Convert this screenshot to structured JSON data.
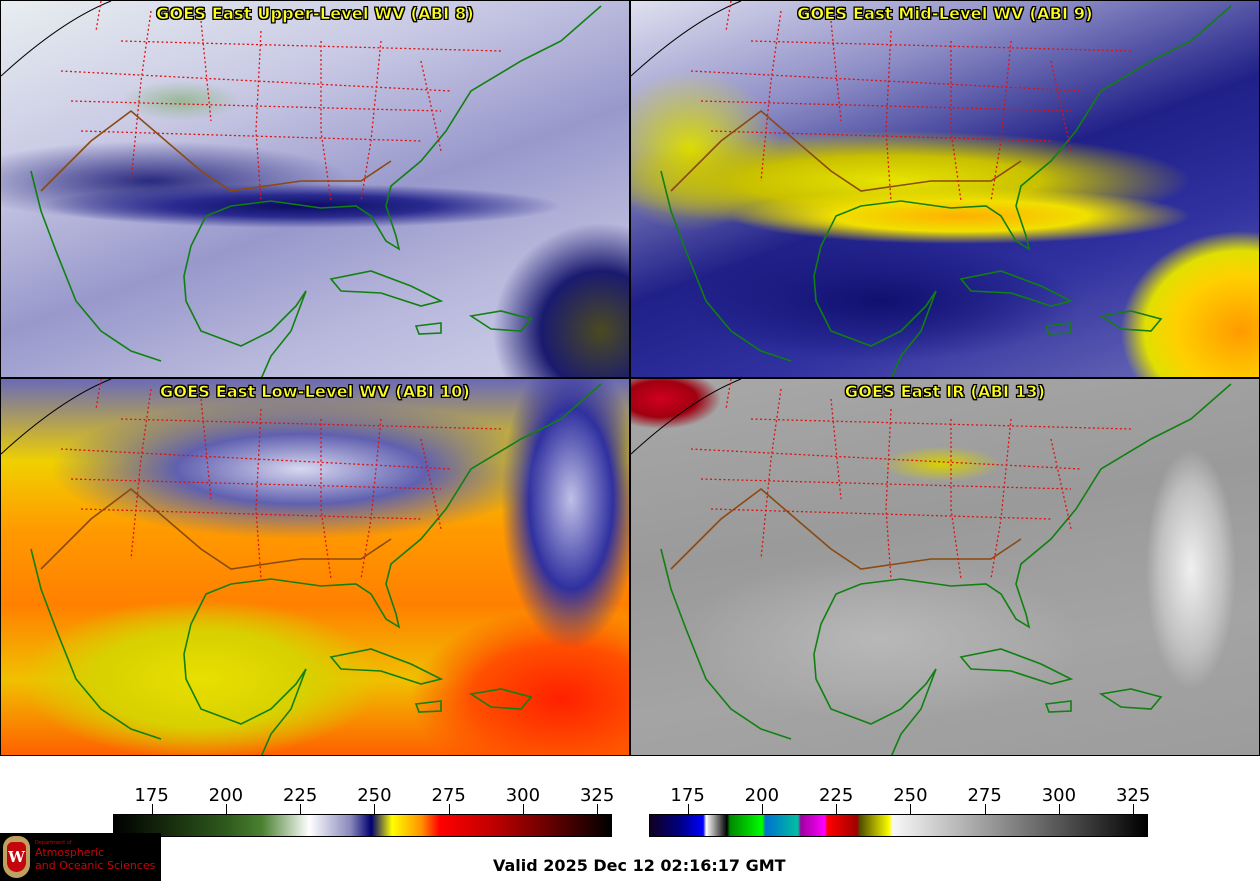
{
  "panels": [
    {
      "title": "GOES East Upper-Level WV (ABI 8)"
    },
    {
      "title": "GOES East Mid-Level WV (ABI 9)"
    },
    {
      "title": "GOES East Low-Level WV (ABI 10)"
    },
    {
      "title": "GOES East IR (ABI 13)"
    }
  ],
  "colorbars": [
    {
      "name": "wv-colorbar",
      "range": [
        162,
        330
      ],
      "ticks": [
        "175",
        "200",
        "225",
        "250",
        "275",
        "300",
        "325"
      ],
      "stops": [
        {
          "v": 162,
          "c": "#000000"
        },
        {
          "v": 200,
          "c": "#2e5a1c"
        },
        {
          "v": 212,
          "c": "#4a8030"
        },
        {
          "v": 228,
          "c": "#ffffff"
        },
        {
          "v": 242,
          "c": "#8888bb"
        },
        {
          "v": 249,
          "c": "#000070"
        },
        {
          "v": 256,
          "c": "#ffff00"
        },
        {
          "v": 266,
          "c": "#ff9000"
        },
        {
          "v": 272,
          "c": "#ff0000"
        },
        {
          "v": 290,
          "c": "#c00000"
        },
        {
          "v": 305,
          "c": "#7a0000"
        },
        {
          "v": 330,
          "c": "#000000"
        }
      ]
    },
    {
      "name": "ir-colorbar",
      "range": [
        162,
        330
      ],
      "ticks": [
        "175",
        "200",
        "225",
        "250",
        "275",
        "300",
        "325"
      ],
      "stops": [
        {
          "v": 162,
          "c": "#100020"
        },
        {
          "v": 172,
          "c": "#000080"
        },
        {
          "v": 180,
          "c": "#0000ff"
        },
        {
          "v": 181,
          "c": "#ffffff"
        },
        {
          "v": 188,
          "c": "#000000"
        },
        {
          "v": 189,
          "c": "#008800"
        },
        {
          "v": 200,
          "c": "#00ff00"
        },
        {
          "v": 201,
          "c": "#0070d0"
        },
        {
          "v": 212,
          "c": "#00c0a0"
        },
        {
          "v": 213,
          "c": "#a000a0"
        },
        {
          "v": 221,
          "c": "#ff00ff"
        },
        {
          "v": 222,
          "c": "#ff0000"
        },
        {
          "v": 232,
          "c": "#a00000"
        },
        {
          "v": 233,
          "c": "#505000"
        },
        {
          "v": 243,
          "c": "#ffff00"
        },
        {
          "v": 244,
          "c": "#f8f8f8"
        },
        {
          "v": 330,
          "c": "#000000"
        }
      ]
    }
  ],
  "logo": {
    "line1": "Department of",
    "line2": "Atmospheric",
    "line3": "and Oceanic Sciences",
    "crest_letter": "W"
  },
  "valid_time": "Valid 2025 Dec 12 02:16:17 GMT"
}
